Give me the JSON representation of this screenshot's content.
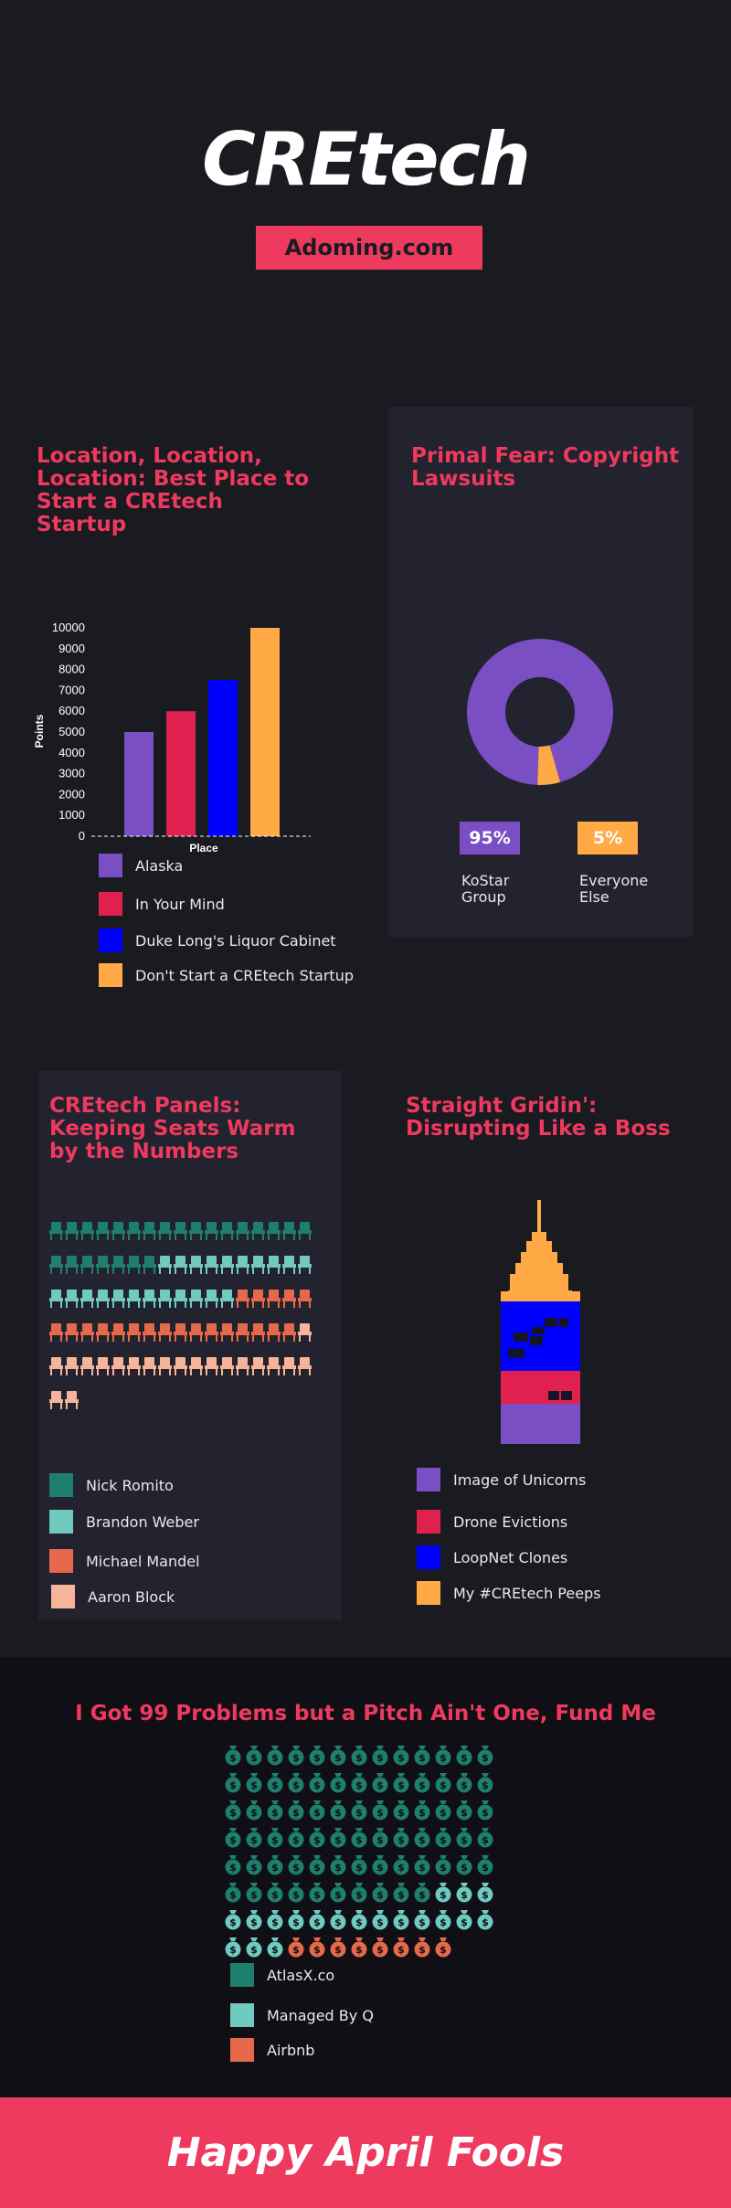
{
  "header": {
    "title": "CREtech",
    "site": "Adoming.com"
  },
  "section1": {
    "title": "Location, Location, Location: Best Place to Start a CREtech Startup",
    "chart_data": {
      "type": "bar",
      "categories": [
        "Alaska",
        "In Your Mind",
        "Duke Long's Liquor Cabinet",
        "Don't Start  a CREtech Startup"
      ],
      "values": [
        5000,
        6000,
        7500,
        10000
      ],
      "colors": [
        "#7a4fc4",
        "#e0204f",
        "#0000ff",
        "#ffaa44"
      ],
      "xlabel": "Place",
      "ylabel": "Points",
      "ylim": [
        0,
        10000
      ],
      "yticks": [
        "0",
        "1000",
        "2000",
        "3000",
        "4000",
        "5000",
        "6000",
        "7000",
        "8000",
        "9000",
        "10000"
      ]
    },
    "legend": [
      "Alaska",
      "In Your Mind",
      "Duke Long's Liquor Cabinet",
      "Don't Start  a CREtech Startup"
    ]
  },
  "section2": {
    "title": "Primal Fear: Copyright Lawsuits",
    "chart_data": {
      "type": "pie",
      "slices": [
        {
          "label": "KoStar Group",
          "value": 95,
          "color": "#7a4fc4"
        },
        {
          "label": "Everyone Else",
          "value": 5,
          "color": "#ffaa44"
        }
      ]
    },
    "labels": [
      {
        "pct": "95%",
        "name_line1": "KoStar",
        "name_line2": "Group"
      },
      {
        "pct": "5%",
        "name_line1": "Everyone",
        "name_line2": "Else"
      }
    ]
  },
  "section3": {
    "title": "CREtech Panels: Keeping Seats Warm by the Numbers",
    "icon_counts": [
      24,
      22,
      21,
      20
    ],
    "colors": [
      "#1e7f6e",
      "#6fcac0",
      "#e7694b",
      "#f6b49a"
    ],
    "legend": [
      "Nick Romito",
      "Brandon Weber",
      "Michael Mandel",
      "Aaron Block"
    ]
  },
  "section4": {
    "title": "Straight Gridin': Disrupting Like a Boss",
    "colors": [
      "#7a4fc4",
      "#e0204f",
      "#0000ff",
      "#ffaa44"
    ],
    "legend": [
      "Image of Unicorns",
      "Drone Evictions",
      "LoopNet Clones",
      "My #CREtech Peeps"
    ]
  },
  "section5": {
    "title": "I Got 99 Problems but a Pitch Ain't One, Fund Me",
    "icon_counts": [
      75,
      19,
      8
    ],
    "icon_symbol": "$",
    "colors": [
      "#1e7f6e",
      "#6fcac0",
      "#e7694b"
    ],
    "legend": [
      "AtlasX.co",
      "Managed By Q",
      "Airbnb"
    ]
  },
  "footer": {
    "text": "Happy April Fools"
  }
}
